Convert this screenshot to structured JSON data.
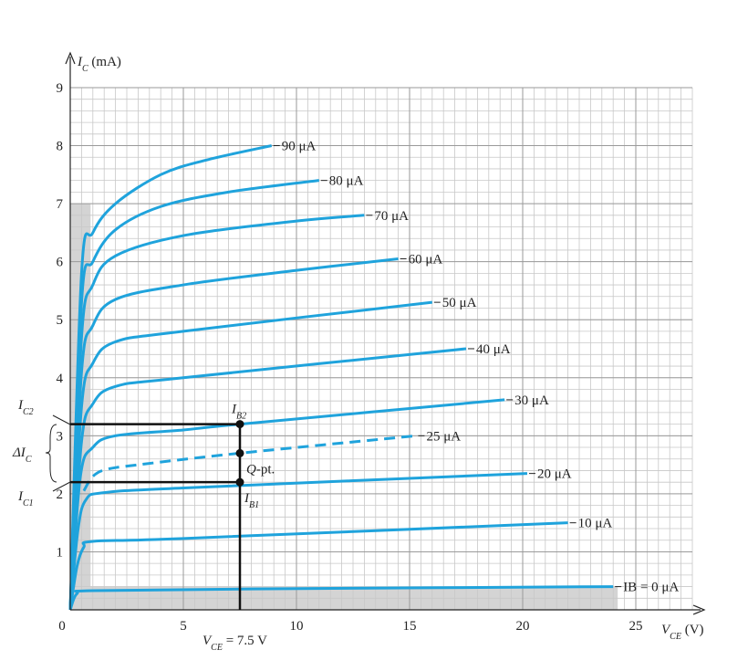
{
  "chart_data": {
    "type": "line",
    "xlim": [
      0,
      27.5
    ],
    "ylim": [
      0,
      9
    ],
    "xticks": [
      0,
      5,
      10,
      15,
      20,
      25
    ],
    "yticks": [
      1,
      2,
      3,
      4,
      5,
      6,
      7,
      8,
      9
    ],
    "grid": true,
    "minor_grid": {
      "x_step": 0.5,
      "y_step": 0.2
    },
    "y_label": [
      "I",
      "C",
      " (mA)"
    ],
    "x_label": [
      "V",
      "CE",
      " (V)"
    ],
    "shaded": [
      {
        "x": [
          0,
          0.9
        ],
        "y": [
          0,
          7
        ]
      },
      {
        "x": [
          0,
          24.2
        ],
        "y": [
          0,
          0.4
        ]
      }
    ],
    "series": [
      {
        "name": "IB = 0 μA",
        "color": "#1fa3dc",
        "x": [
          0,
          0.3,
          1,
          8,
          24
        ],
        "values": [
          0,
          0.28,
          0.33,
          0.36,
          0.4
        ]
      },
      {
        "name": "10 μA",
        "color": "#1fa3dc",
        "x": [
          0,
          0.3,
          0.6,
          1,
          5,
          22
        ],
        "values": [
          0,
          0.75,
          1.08,
          1.18,
          1.23,
          1.5
        ]
      },
      {
        "name": "20 μA",
        "color": "#1fa3dc",
        "x": [
          0,
          0.35,
          0.7,
          1.5,
          5,
          20.2
        ],
        "values": [
          0,
          1.4,
          1.9,
          2.02,
          2.1,
          2.35
        ]
      },
      {
        "name": "25 μA",
        "color": "#1fa3dc",
        "dashed": true,
        "x": [
          0.6,
          1,
          1.6,
          3,
          7.5,
          15.3
        ],
        "values": [
          2.05,
          2.3,
          2.42,
          2.5,
          2.7,
          3.0
        ]
      },
      {
        "name": "30 μA",
        "color": "#1fa3dc",
        "x": [
          0,
          0.45,
          1,
          2,
          5,
          7.5,
          19.2
        ],
        "values": [
          0,
          2.3,
          2.8,
          3.0,
          3.1,
          3.2,
          3.62
        ]
      },
      {
        "name": "40 μA",
        "color": "#1fa3dc",
        "x": [
          0,
          0.5,
          1,
          2,
          5,
          17.5
        ],
        "values": [
          0,
          2.9,
          3.55,
          3.85,
          4.0,
          4.5
        ]
      },
      {
        "name": "50 μA",
        "color": "#1fa3dc",
        "x": [
          0,
          0.5,
          1,
          2,
          5,
          16
        ],
        "values": [
          0,
          3.5,
          4.25,
          4.62,
          4.8,
          5.3
        ]
      },
      {
        "name": "60 μA",
        "color": "#1fa3dc",
        "x": [
          0,
          0.5,
          1,
          2,
          5,
          10,
          14.5
        ],
        "values": [
          0,
          4.1,
          4.9,
          5.35,
          5.6,
          5.85,
          6.05
        ]
      },
      {
        "name": "70 μA",
        "color": "#1fa3dc",
        "x": [
          0,
          0.5,
          1,
          2,
          5,
          10,
          13
        ],
        "values": [
          0,
          4.7,
          5.6,
          6.1,
          6.45,
          6.7,
          6.8
        ]
      },
      {
        "name": "80 μA",
        "color": "#1fa3dc",
        "x": [
          0,
          0.5,
          1,
          2,
          4,
          7,
          11
        ],
        "values": [
          0,
          5.3,
          6.0,
          6.55,
          6.95,
          7.2,
          7.4
        ]
      },
      {
        "name": "90 μA",
        "color": "#1fa3dc",
        "x": [
          0,
          0.5,
          1,
          2,
          4,
          6,
          8.9
        ],
        "values": [
          0,
          5.8,
          6.5,
          7.0,
          7.5,
          7.75,
          8.0
        ]
      }
    ],
    "q_point": {
      "vce": 7.5,
      "ic": 2.7,
      "ic1": 2.2,
      "ic2": 3.2
    },
    "vce_label": [
      "V",
      "CE",
      " = 7.5 V"
    ],
    "ib2_label": [
      "I",
      "B2"
    ],
    "ib1_label": [
      "I",
      "B1"
    ],
    "q_label": [
      "Q",
      "",
      "-pt."
    ],
    "ic2_label": [
      "I",
      "C2"
    ],
    "ic1_label": [
      "I",
      "C1"
    ],
    "delta_label": [
      "ΔI",
      "C"
    ]
  }
}
